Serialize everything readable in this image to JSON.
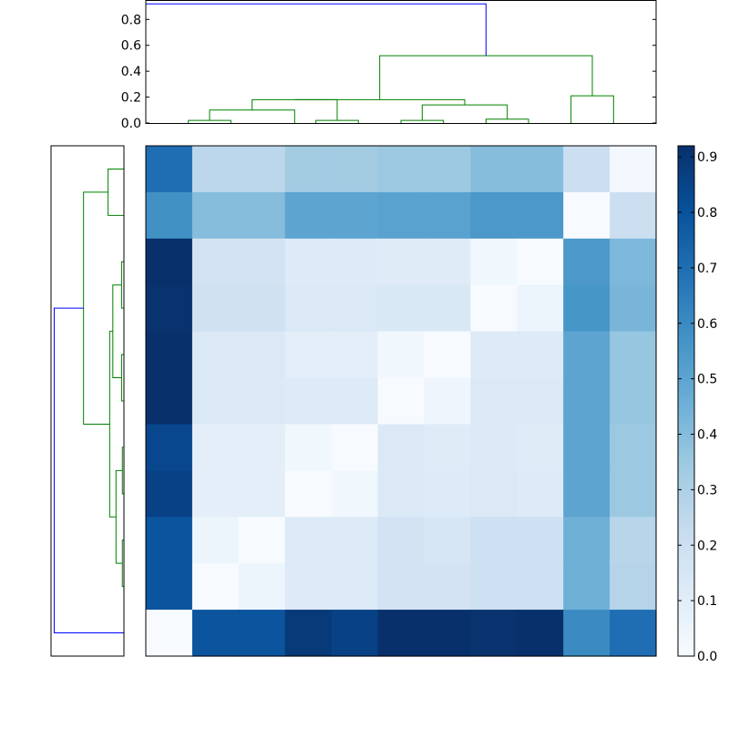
{
  "chart_data": {
    "type": "heatmap",
    "title": "",
    "xlabel": "",
    "ylabel": "",
    "colormap": "Blues",
    "colors": {
      "low": "#f7fbff",
      "high": "#08306b",
      "dendro_main": "#0000ff",
      "dendro_cluster": "#008000"
    },
    "colorbar": {
      "range": [
        0,
        0.92
      ],
      "ticks": [
        "0.0",
        "0.1",
        "0.2",
        "0.3",
        "0.4",
        "0.5",
        "0.6",
        "0.7",
        "0.8",
        "0.9"
      ]
    },
    "matrix": [
      [
        0.7,
        0.26,
        0.26,
        0.33,
        0.33,
        0.35,
        0.35,
        0.4,
        0.4,
        0.2,
        0.02
      ],
      [
        0.58,
        0.4,
        0.4,
        0.5,
        0.5,
        0.51,
        0.51,
        0.55,
        0.55,
        0.0,
        0.2
      ],
      [
        0.92,
        0.17,
        0.17,
        0.12,
        0.12,
        0.11,
        0.11,
        0.03,
        0.0,
        0.55,
        0.42
      ],
      [
        0.91,
        0.18,
        0.18,
        0.13,
        0.13,
        0.14,
        0.14,
        0.0,
        0.05,
        0.56,
        0.43
      ],
      [
        0.94,
        0.13,
        0.13,
        0.09,
        0.09,
        0.03,
        0.0,
        0.12,
        0.12,
        0.5,
        0.36
      ],
      [
        0.93,
        0.13,
        0.13,
        0.12,
        0.12,
        0.0,
        0.04,
        0.13,
        0.13,
        0.5,
        0.36
      ],
      [
        0.84,
        0.09,
        0.09,
        0.03,
        0.0,
        0.13,
        0.11,
        0.13,
        0.11,
        0.5,
        0.35
      ],
      [
        0.86,
        0.09,
        0.09,
        0.0,
        0.03,
        0.13,
        0.12,
        0.13,
        0.12,
        0.5,
        0.35
      ],
      [
        0.79,
        0.05,
        0.0,
        0.12,
        0.12,
        0.17,
        0.15,
        0.19,
        0.19,
        0.45,
        0.27
      ],
      [
        0.79,
        0.0,
        0.05,
        0.12,
        0.12,
        0.17,
        0.17,
        0.19,
        0.19,
        0.45,
        0.28
      ],
      [
        0.0,
        0.79,
        0.79,
        0.89,
        0.86,
        0.94,
        0.93,
        0.91,
        0.92,
        0.6,
        0.7
      ]
    ],
    "dendrogram_top": {
      "y_range": [
        0,
        0.95
      ],
      "y_ticks": [
        "0.0",
        "0.2",
        "0.4",
        "0.6",
        "0.8"
      ],
      "links": [
        {
          "left": 1.5,
          "right": 2.5,
          "height": 0.02,
          "color": "cluster"
        },
        {
          "left": 2.0,
          "right": 4.0,
          "height": 0.1,
          "color": "cluster"
        },
        {
          "left": 4.5,
          "right": 5.5,
          "height": 0.02,
          "color": "cluster"
        },
        {
          "left": 3.0,
          "right": 5.0,
          "height": 0.18,
          "color": "cluster"
        },
        {
          "left": 6.5,
          "right": 7.5,
          "height": 0.02,
          "color": "cluster"
        },
        {
          "left": 8.5,
          "right": 9.5,
          "height": 0.03,
          "color": "cluster"
        },
        {
          "left": 7.0,
          "right": 9.0,
          "height": 0.14,
          "color": "cluster"
        },
        {
          "left": 4.0,
          "right": 8.0,
          "height": 0.18,
          "color": "cluster"
        },
        {
          "left": 10.5,
          "right": 11.5,
          "height": 0.21,
          "color": "cluster"
        },
        {
          "left": 6.0,
          "right": 11.0,
          "height": 0.52,
          "color": "cluster"
        },
        {
          "left": 0.5,
          "right": 8.5,
          "height": 0.92,
          "color": "main"
        }
      ]
    },
    "dendrogram_left": {
      "x_range": [
        0,
        0.92
      ],
      "links": [
        {
          "a": 0.5,
          "b": 1.5,
          "height": 0.2,
          "color": "cluster"
        },
        {
          "a": 2.5,
          "b": 3.5,
          "height": 0.03,
          "color": "cluster"
        },
        {
          "a": 4.5,
          "b": 5.5,
          "height": 0.03,
          "color": "cluster"
        },
        {
          "a": 3.0,
          "b": 5.0,
          "height": 0.14,
          "color": "cluster"
        },
        {
          "a": 6.5,
          "b": 7.5,
          "height": 0.02,
          "color": "cluster"
        },
        {
          "a": 8.5,
          "b": 9.5,
          "height": 0.02,
          "color": "cluster"
        },
        {
          "a": 7.0,
          "b": 9.0,
          "height": 0.1,
          "color": "cluster"
        },
        {
          "a": 4.0,
          "b": 8.0,
          "height": 0.18,
          "color": "cluster"
        },
        {
          "a": 1.0,
          "b": 6.0,
          "height": 0.51,
          "color": "cluster"
        },
        {
          "a": 3.5,
          "b": 10.5,
          "height": 0.88,
          "color": "main"
        }
      ]
    }
  }
}
